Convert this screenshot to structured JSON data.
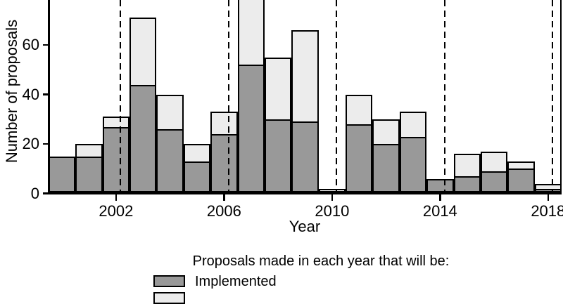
{
  "figure": {
    "ylabel": "Number of proposals",
    "xlabel": "Year",
    "legend_title": "Proposals made in each year that will be:",
    "legend_items": [
      {
        "label": "Implemented",
        "color": "#999999"
      },
      {
        "label": "",
        "color": "#ececec"
      }
    ],
    "background": "#ffffff"
  },
  "chart_data": {
    "type": "bar",
    "stacked": true,
    "title": "",
    "xlabel": "Year",
    "ylabel": "Number of proposals",
    "categories": [
      2000,
      2001,
      2002,
      2003,
      2004,
      2005,
      2006,
      2007,
      2008,
      2009,
      2010,
      2011,
      2012,
      2013,
      2014,
      2015,
      2016,
      2017,
      2018
    ],
    "series": [
      {
        "name": "Implemented",
        "color": "#999999",
        "values": [
          15,
          15,
          27,
          44,
          26,
          13,
          24,
          52,
          30,
          29,
          0,
          28,
          20,
          23,
          6,
          7,
          9,
          10,
          2
        ]
      },
      {
        "name": "",
        "color": "#ececec",
        "values": [
          0,
          5,
          4,
          27,
          14,
          7,
          9,
          28,
          25,
          37,
          2,
          12,
          10,
          10,
          0,
          9,
          8,
          3,
          2
        ]
      }
    ],
    "stack_totals": [
      15,
      20,
      31,
      71,
      40,
      20,
      33,
      80,
      55,
      66,
      2,
      40,
      30,
      33,
      6,
      16,
      17,
      13,
      4
    ],
    "yticks": [
      0,
      20,
      40,
      60
    ],
    "xticks": [
      2002,
      2006,
      2010,
      2014,
      2018
    ],
    "dashed_vlines_x": [
      2002,
      2006,
      2010,
      2014,
      2018
    ],
    "visible_y_max": 78,
    "grid": "off",
    "legend_position": "bottom-center",
    "notes": {
      "top_cropped": "image is cropped at top; 2007 stack extends beyond visible area (total rendered as 80, >= 78 visible)",
      "bottom_cropped": "second legend swatch is only partially visible at the bottom edge; its label is cut off"
    }
  }
}
